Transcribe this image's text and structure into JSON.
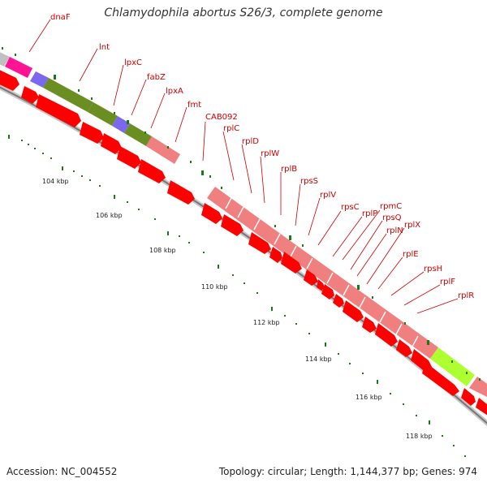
{
  "title": "Chlamydophila abortus S26/3, complete genome",
  "footer": {
    "accession": "Accession: NC_004552",
    "info": "Topology: circular; Length: 1,144,377 bp; Genes: 974"
  },
  "ruler_labels": [
    "104 kbp",
    "106 kbp",
    "108 kbp",
    "110 kbp",
    "112 kbp",
    "114 kbp",
    "116 kbp",
    "118 kbp"
  ],
  "gene_labels": [
    "dnaF",
    "lnt",
    "lpxC",
    "fabZ",
    "lpxA",
    "fmt",
    "CAB092",
    "rplC",
    "rplD",
    "rplW",
    "rplB",
    "rpsS",
    "rplV",
    "rpsC",
    "rplP",
    "rpmC",
    "rpsQ",
    "rplN",
    "rplX",
    "rplE",
    "rpsH",
    "rplF",
    "rplR"
  ],
  "colors": {
    "gene_label": "#cc0000",
    "cds": "#ff0000",
    "ribosomal": "#f08080",
    "olive": "#6b8e23",
    "violet": "#7b68ee",
    "magenta": "#ff1493",
    "lime": "#adff2f",
    "ruler_tick": "#1a7a1a"
  }
}
